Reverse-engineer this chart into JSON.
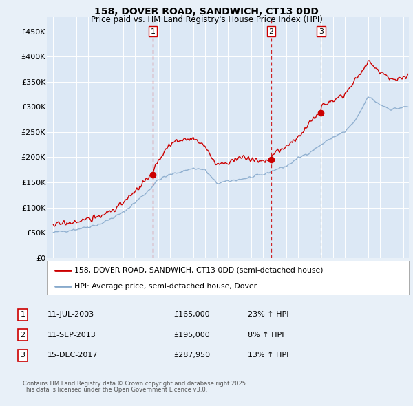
{
  "title": "158, DOVER ROAD, SANDWICH, CT13 0DD",
  "subtitle": "Price paid vs. HM Land Registry's House Price Index (HPI)",
  "background_color": "#e8f0f8",
  "plot_bg_color": "#dce8f5",
  "legend_line1": "158, DOVER ROAD, SANDWICH, CT13 0DD (semi-detached house)",
  "legend_line2": "HPI: Average price, semi-detached house, Dover",
  "red_color": "#cc0000",
  "blue_color": "#88aacc",
  "transactions": [
    {
      "num": 1,
      "date": "11-JUL-2003",
      "price": 165000,
      "pct": "23%",
      "dir": "↑",
      "x_year": 2003.53,
      "vline_style": "red_dash"
    },
    {
      "num": 2,
      "date": "11-SEP-2013",
      "price": 195000,
      "pct": "8%",
      "dir": "↑",
      "x_year": 2013.69,
      "vline_style": "red_dash"
    },
    {
      "num": 3,
      "date": "15-DEC-2017",
      "price": 287950,
      "pct": "13%",
      "dir": "↑",
      "x_year": 2017.96,
      "vline_style": "gray_dash"
    }
  ],
  "footer1": "Contains HM Land Registry data © Crown copyright and database right 2025.",
  "footer2": "This data is licensed under the Open Government Licence v3.0.",
  "ylim": [
    0,
    480000
  ],
  "yticks": [
    0,
    50000,
    100000,
    150000,
    200000,
    250000,
    300000,
    350000,
    400000,
    450000
  ],
  "xlim_start": 1994.5,
  "xlim_end": 2025.5
}
